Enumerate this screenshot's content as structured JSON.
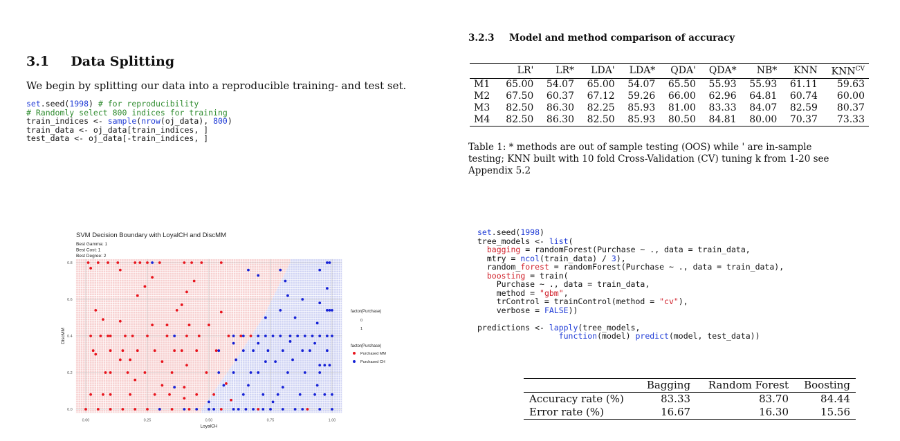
{
  "left": {
    "section_number": "3.1",
    "section_title": "Data Splitting",
    "intro": "We begin by splitting our data into a reproducible training- and test set.",
    "code_lines": [
      [
        {
          "t": "set",
          "c": "kw"
        },
        {
          "t": ".seed(",
          "c": ""
        },
        {
          "t": "1998",
          "c": "kw"
        },
        {
          "t": ") ",
          "c": ""
        },
        {
          "t": "# for reproducibility",
          "c": "cmt"
        }
      ],
      [
        {
          "t": "# Randomly select 800 indices for training",
          "c": "cmt"
        }
      ],
      [
        {
          "t": "train_indices <- ",
          "c": ""
        },
        {
          "t": "sample",
          "c": "kw"
        },
        {
          "t": "(",
          "c": ""
        },
        {
          "t": "nrow",
          "c": "kw"
        },
        {
          "t": "(oj_data), ",
          "c": ""
        },
        {
          "t": "800",
          "c": "kw"
        },
        {
          "t": ")",
          "c": ""
        }
      ],
      [
        {
          "t": "train_data <- oj_data[train_indices, ]",
          "c": ""
        }
      ],
      [
        {
          "t": "test_data <- oj_data[-train_indices, ]",
          "c": ""
        }
      ]
    ]
  },
  "right_top": {
    "subsection_number": "3.2.3",
    "subsection_title": "Model and method comparison of accuracy",
    "table_headers": [
      "",
      "LR'",
      "LR*",
      "LDA'",
      "LDA*",
      "QDA'",
      "QDA*",
      "NB*",
      "KNN",
      "KNN^CV"
    ],
    "table_rows": [
      [
        "M1",
        "65.00",
        "54.07",
        "65.00",
        "54.07",
        "65.50",
        "55.93",
        "55.93",
        "61.11",
        "59.63"
      ],
      [
        "M2",
        "67.50",
        "60.37",
        "67.12",
        "59.26",
        "66.00",
        "62.96",
        "64.81",
        "60.74",
        "60.00"
      ],
      [
        "M3",
        "82.50",
        "86.30",
        "82.25",
        "85.93",
        "81.00",
        "83.33",
        "84.07",
        "82.59",
        "80.37"
      ],
      [
        "M4",
        "82.50",
        "86.30",
        "82.50",
        "85.93",
        "80.50",
        "84.81",
        "80.00",
        "70.37",
        "73.33"
      ]
    ],
    "caption_lines": [
      "Table 1: * methods are out of sample testing (OOS) while ' are in-sample",
      "testing; KNN built with 10 fold Cross-Validation (CV) tuning k from 1-20 see",
      "Appendix 5.2"
    ]
  },
  "right_bottom": {
    "code_lines": [
      [
        {
          "t": "set",
          "c": "kw"
        },
        {
          "t": ".seed(",
          "c": ""
        },
        {
          "t": "1998",
          "c": "kw"
        },
        {
          "t": ")",
          "c": ""
        }
      ],
      [
        {
          "t": "tree_models <- ",
          "c": ""
        },
        {
          "t": "list",
          "c": "kw"
        },
        {
          "t": "(",
          "c": ""
        }
      ],
      [
        {
          "t": "  ",
          "c": ""
        },
        {
          "t": "bagging",
          "c": "red"
        },
        {
          "t": " = randomForest(Purchase ~ ., data = train_data,",
          "c": ""
        }
      ],
      [
        {
          "t": "  mtry = ",
          "c": ""
        },
        {
          "t": "ncol",
          "c": "kw"
        },
        {
          "t": "(train_data) / ",
          "c": ""
        },
        {
          "t": "3",
          "c": "kw"
        },
        {
          "t": "),",
          "c": ""
        }
      ],
      [
        {
          "t": "  random_",
          "c": ""
        },
        {
          "t": "forest",
          "c": "red"
        },
        {
          "t": " = randomForest(Purchase ~ ., data = train_data),",
          "c": ""
        }
      ],
      [
        {
          "t": "  ",
          "c": ""
        },
        {
          "t": "boosting",
          "c": "red"
        },
        {
          "t": " = train(",
          "c": ""
        }
      ],
      [
        {
          "t": "    Purchase ~ ., data = train_data,",
          "c": ""
        }
      ],
      [
        {
          "t": "    method = ",
          "c": ""
        },
        {
          "t": "\"gbm\"",
          "c": "red"
        },
        {
          "t": ",",
          "c": ""
        }
      ],
      [
        {
          "t": "    trControl = trainControl(method = ",
          "c": ""
        },
        {
          "t": "\"cv\"",
          "c": "red"
        },
        {
          "t": "),",
          "c": ""
        }
      ],
      [
        {
          "t": "    verbose = ",
          "c": ""
        },
        {
          "t": "FALSE",
          "c": "kw"
        },
        {
          "t": "))",
          "c": ""
        }
      ],
      [
        {
          "t": "",
          "c": ""
        }
      ],
      [
        {
          "t": "predictions <- ",
          "c": ""
        },
        {
          "t": "lapply",
          "c": "kw"
        },
        {
          "t": "(tree_models,",
          "c": ""
        }
      ],
      [
        {
          "t": "                 ",
          "c": ""
        },
        {
          "t": "function",
          "c": "kw"
        },
        {
          "t": "(model) ",
          "c": ""
        },
        {
          "t": "predict",
          "c": "kw"
        },
        {
          "t": "(model, test_data))",
          "c": ""
        }
      ]
    ],
    "table_headers": [
      "",
      "Bagging",
      "Random Forest",
      "Boosting"
    ],
    "table_rows": [
      [
        "Accuracy rate (%)",
        "83.33",
        "83.70",
        "84.44"
      ],
      [
        "Error rate (%)",
        "16.67",
        "16.30",
        "15.56"
      ]
    ]
  },
  "chart_data": {
    "type": "scatter",
    "title": "SVM Decision Boundary with LoyalCH and DiscMM",
    "subtitle_lines": [
      "Best Gamma: 1",
      "Best Cost: 1",
      "Best Degree: 2"
    ],
    "xlabel": "LoyalCH",
    "ylabel": "DiscMM",
    "xlim": [
      0,
      1
    ],
    "ylim": [
      0,
      0.8
    ],
    "x_ticks": [
      "0.00",
      "0.25",
      "0.50",
      "0.75",
      "1.00"
    ],
    "y_ticks": [
      "0.0",
      "0.2",
      "0.4",
      "0.6",
      "0.8"
    ],
    "legend_fill_title": "factor(Purchase)",
    "legend_fill_items": [
      "0",
      "1"
    ],
    "legend_point_title": "factor(Purchase)",
    "legend_point_items": [
      "Purchased MM",
      "Purchased CH"
    ],
    "colors": {
      "mm": "#e8141c",
      "ch": "#1521d6",
      "region_mm": "#f6c8c8",
      "region_ch": "#c8ccf2"
    },
    "boundary": [
      [
        0.47,
        0.0
      ],
      [
        0.6,
        0.25
      ],
      [
        0.72,
        0.5
      ],
      [
        0.83,
        0.8
      ]
    ],
    "series": [
      {
        "name": "Purchased MM",
        "points": [
          [
            0.01,
            0.8
          ],
          [
            0.05,
            0.8
          ],
          [
            0.09,
            0.8
          ],
          [
            0.13,
            0.8
          ],
          [
            0.2,
            0.8
          ],
          [
            0.22,
            0.8
          ],
          [
            0.25,
            0.8
          ],
          [
            0.3,
            0.8
          ],
          [
            0.4,
            0.8
          ],
          [
            0.43,
            0.8
          ],
          [
            0.47,
            0.8
          ],
          [
            0.55,
            0.8
          ],
          [
            0.02,
            0.77
          ],
          [
            0.14,
            0.76
          ],
          [
            0.27,
            0.72
          ],
          [
            0.44,
            0.7
          ],
          [
            0.24,
            0.67
          ],
          [
            0.41,
            0.64
          ],
          [
            0.21,
            0.62
          ],
          [
            0.39,
            0.57
          ],
          [
            0.04,
            0.54
          ],
          [
            0.37,
            0.54
          ],
          [
            0.55,
            0.53
          ],
          [
            0.07,
            0.49
          ],
          [
            0.14,
            0.48
          ],
          [
            0.27,
            0.46
          ],
          [
            0.33,
            0.46
          ],
          [
            0.42,
            0.46
          ],
          [
            0.5,
            0.46
          ],
          [
            0.02,
            0.4
          ],
          [
            0.06,
            0.4
          ],
          [
            0.09,
            0.4
          ],
          [
            0.1,
            0.4
          ],
          [
            0.16,
            0.4
          ],
          [
            0.19,
            0.4
          ],
          [
            0.25,
            0.4
          ],
          [
            0.33,
            0.4
          ],
          [
            0.41,
            0.4
          ],
          [
            0.46,
            0.4
          ],
          [
            0.58,
            0.4
          ],
          [
            0.63,
            0.4
          ],
          [
            0.67,
            0.4
          ],
          [
            0.03,
            0.32
          ],
          [
            0.1,
            0.32
          ],
          [
            0.15,
            0.32
          ],
          [
            0.21,
            0.32
          ],
          [
            0.28,
            0.32
          ],
          [
            0.36,
            0.32
          ],
          [
            0.39,
            0.32
          ],
          [
            0.45,
            0.32
          ],
          [
            0.53,
            0.32
          ],
          [
            0.04,
            0.3
          ],
          [
            0.14,
            0.27
          ],
          [
            0.18,
            0.27
          ],
          [
            0.31,
            0.26
          ],
          [
            0.41,
            0.24
          ],
          [
            0.08,
            0.2
          ],
          [
            0.1,
            0.2
          ],
          [
            0.17,
            0.2
          ],
          [
            0.24,
            0.2
          ],
          [
            0.35,
            0.2
          ],
          [
            0.49,
            0.2
          ],
          [
            0.2,
            0.16
          ],
          [
            0.31,
            0.13
          ],
          [
            0.4,
            0.12
          ],
          [
            0.57,
            0.14
          ],
          [
            0.02,
            0.08
          ],
          [
            0.07,
            0.08
          ],
          [
            0.1,
            0.08
          ],
          [
            0.18,
            0.08
          ],
          [
            0.28,
            0.08
          ],
          [
            0.34,
            0.08
          ],
          [
            0.45,
            0.08
          ],
          [
            0.52,
            0.08
          ],
          [
            0.4,
            0.06
          ],
          [
            0.59,
            0.05
          ],
          [
            0.0,
            0.0
          ],
          [
            0.05,
            0.0
          ],
          [
            0.1,
            0.0
          ],
          [
            0.15,
            0.0
          ],
          [
            0.2,
            0.0
          ],
          [
            0.25,
            0.0
          ],
          [
            0.3,
            0.0
          ],
          [
            0.35,
            0.0
          ],
          [
            0.42,
            0.0
          ],
          [
            0.55,
            0.0
          ],
          [
            0.7,
            0.0
          ],
          [
            0.9,
            0.0
          ]
        ]
      },
      {
        "name": "Purchased CH",
        "points": [
          [
            0.27,
            0.8
          ],
          [
            0.98,
            0.8
          ],
          [
            0.99,
            0.8
          ],
          [
            0.66,
            0.76
          ],
          [
            0.79,
            0.76
          ],
          [
            0.95,
            0.76
          ],
          [
            0.7,
            0.73
          ],
          [
            0.81,
            0.7
          ],
          [
            0.98,
            0.66
          ],
          [
            0.82,
            0.62
          ],
          [
            0.88,
            0.6
          ],
          [
            0.95,
            0.58
          ],
          [
            0.79,
            0.54
          ],
          [
            0.98,
            0.54
          ],
          [
            0.99,
            0.54
          ],
          [
            1.0,
            0.54
          ],
          [
            0.73,
            0.5
          ],
          [
            0.85,
            0.5
          ],
          [
            0.94,
            0.47
          ],
          [
            0.36,
            0.4
          ],
          [
            0.6,
            0.4
          ],
          [
            0.64,
            0.4
          ],
          [
            0.7,
            0.4
          ],
          [
            0.73,
            0.4
          ],
          [
            0.76,
            0.4
          ],
          [
            0.79,
            0.4
          ],
          [
            0.83,
            0.4
          ],
          [
            0.86,
            0.4
          ],
          [
            0.89,
            0.4
          ],
          [
            0.92,
            0.4
          ],
          [
            0.95,
            0.4
          ],
          [
            0.98,
            0.4
          ],
          [
            1.0,
            0.4
          ],
          [
            0.6,
            0.36
          ],
          [
            0.7,
            0.36
          ],
          [
            0.83,
            0.37
          ],
          [
            0.93,
            0.36
          ],
          [
            0.54,
            0.32
          ],
          [
            0.64,
            0.32
          ],
          [
            0.68,
            0.32
          ],
          [
            0.74,
            0.32
          ],
          [
            0.8,
            0.32
          ],
          [
            0.88,
            0.32
          ],
          [
            0.91,
            0.32
          ],
          [
            0.98,
            0.32
          ],
          [
            0.61,
            0.27
          ],
          [
            0.73,
            0.26
          ],
          [
            0.77,
            0.26
          ],
          [
            0.84,
            0.27
          ],
          [
            0.95,
            0.24
          ],
          [
            0.97,
            0.24
          ],
          [
            0.99,
            0.24
          ],
          [
            0.54,
            0.2
          ],
          [
            0.6,
            0.2
          ],
          [
            0.67,
            0.2
          ],
          [
            0.7,
            0.2
          ],
          [
            0.82,
            0.2
          ],
          [
            0.89,
            0.2
          ],
          [
            0.95,
            0.2
          ],
          [
            0.36,
            0.12
          ],
          [
            0.56,
            0.13
          ],
          [
            0.66,
            0.13
          ],
          [
            0.8,
            0.12
          ],
          [
            0.94,
            0.13
          ],
          [
            0.64,
            0.08
          ],
          [
            0.72,
            0.08
          ],
          [
            0.78,
            0.08
          ],
          [
            0.87,
            0.08
          ],
          [
            0.93,
            0.08
          ],
          [
            0.97,
            0.08
          ],
          [
            1.0,
            0.08
          ],
          [
            0.5,
            0.04
          ],
          [
            0.76,
            0.04
          ],
          [
            0.3,
            0.0
          ],
          [
            0.4,
            0.0
          ],
          [
            0.45,
            0.0
          ],
          [
            0.5,
            0.0
          ],
          [
            0.52,
            0.0
          ],
          [
            0.6,
            0.0
          ],
          [
            0.62,
            0.0
          ],
          [
            0.65,
            0.0
          ],
          [
            0.68,
            0.0
          ],
          [
            0.72,
            0.0
          ],
          [
            0.75,
            0.0
          ],
          [
            0.8,
            0.0
          ],
          [
            0.85,
            0.0
          ],
          [
            0.88,
            0.0
          ],
          [
            0.95,
            0.0
          ],
          [
            1.0,
            0.0
          ]
        ]
      }
    ]
  }
}
